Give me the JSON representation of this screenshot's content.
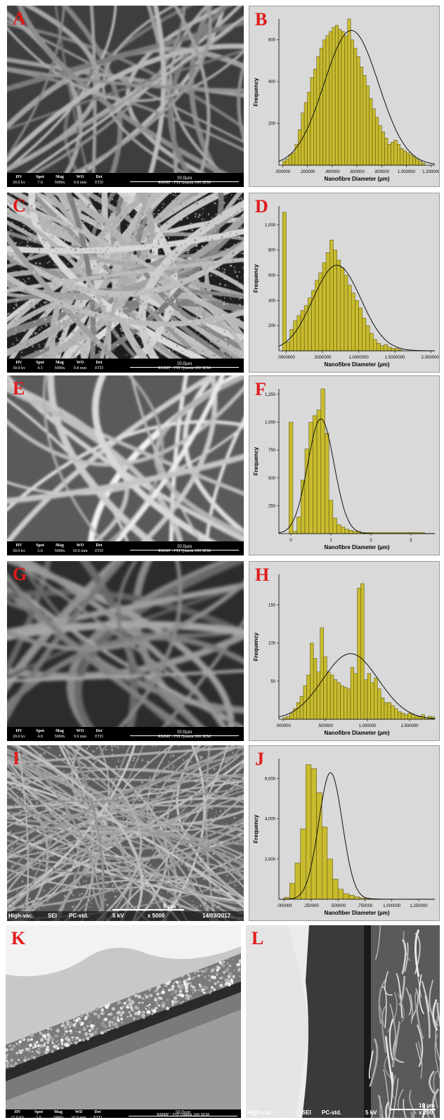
{
  "panels": {
    "A": "A",
    "B": "B",
    "C": "C",
    "D": "D",
    "E": "E",
    "F": "F",
    "G": "G",
    "H": "H",
    "I": "I",
    "J": "J",
    "K": "K",
    "L": "L"
  },
  "sem_bars": {
    "A": {
      "hv": "30.0 kv",
      "spot": "7.0",
      "mag": "5000x",
      "wd": "9.8 mm",
      "det": "ETD",
      "scale": "10.0µm",
      "inst": "RMMF : FEI Quanta 200 SEM"
    },
    "C": {
      "hv": "30.0 kv",
      "spot": "4.5",
      "mag": "5000x",
      "wd": "9.8 mm",
      "det": "ETD",
      "scale": "10.0µm",
      "inst": "RMMF : FEI Quanta 200 SEM"
    },
    "E": {
      "hv": "30.0 kv",
      "spot": "5.0",
      "mag": "5000x",
      "wd": "10.0 mm",
      "det": "ETD",
      "scale": "10.0µm",
      "inst": "RMMF : FEI Quanta 200 SEM"
    },
    "G": {
      "hv": "20.0 kv",
      "spot": "4.0",
      "mag": "5000x",
      "wd": "9.9 mm",
      "det": "ETD",
      "scale": "10.0µm",
      "inst": "RMMF : FEI Quanta 200 SEM"
    },
    "K": {
      "hv": "15.0 kV",
      "spot": "5.0",
      "mag": "1000x",
      "wd": "10.9 mm",
      "det": "ETD",
      "scale": "50.0µm",
      "inst": "RMMF : FEI Quanta 200 SEM"
    }
  },
  "sem_headers": {
    "hv": "HV",
    "spot": "Spot",
    "mag": "Mag",
    "wd": "WO",
    "det": "Det"
  },
  "sem_headers_k": {
    "hv": "HV",
    "spot": "Spot",
    "mag": "Mag",
    "wd": "WD",
    "det": "Det"
  },
  "jeol_I": {
    "vac": "High-vac.",
    "sig": "SEI",
    "mode": "PC-std.",
    "kv": "5 kV",
    "mag": "x 5000",
    "scale": "5 µm",
    "date": "14/03/2017"
  },
  "jeol_L": {
    "vac": "High-vac.",
    "sig": "SEI",
    "mode": "PC-std.",
    "kv": "5 kV",
    "mag": "x 200",
    "scale": "10 µm"
  },
  "hist_colors": {
    "bar": "#c8bb2e",
    "bar_edge": "#4d4a10",
    "curve": "#111111",
    "bg": "#d9d9d9"
  },
  "chart_data": [
    {
      "id": "B",
      "type": "bar",
      "ylabel": "Frequency",
      "xlabel": "Nanofibre Diameter (µm)",
      "xlim": [
        -0.03,
        1.23
      ],
      "ylim": [
        0,
        700
      ],
      "xticks": [
        0,
        0.2,
        0.4,
        0.6,
        0.8,
        1.0,
        1.2
      ],
      "xtick_labels": [
        ".000000",
        ".200000",
        ".400000",
        ".600000",
        ".800000",
        "1.000000",
        "1.200000"
      ],
      "yticks": [
        200,
        400,
        600
      ],
      "ytick_labels": [
        "200",
        "400",
        "600"
      ],
      "bin_start": 0.0,
      "bin_width": 0.025,
      "values": [
        20,
        30,
        50,
        60,
        100,
        170,
        250,
        300,
        350,
        420,
        460,
        520,
        560,
        600,
        620,
        640,
        660,
        670,
        650,
        640,
        620,
        700,
        600,
        560,
        520,
        470,
        430,
        380,
        320,
        270,
        230,
        190,
        160,
        130,
        100,
        110,
        120,
        100,
        80,
        70,
        60,
        50,
        40,
        30,
        20,
        10
      ],
      "curve": {
        "mean": 0.555,
        "sd": 0.22,
        "peak": 645
      }
    },
    {
      "id": "D",
      "type": "bar",
      "ylabel": "Frequency",
      "xlabel": "Nanofibre Diameter (µm)",
      "xlim": [
        -0.1,
        2.05
      ],
      "ylim": [
        0,
        1150
      ],
      "xticks": [
        0,
        0.5,
        1.0,
        1.5,
        2.0
      ],
      "xtick_labels": [
        ".0000000",
        ".5000000",
        "1.0000000",
        "1.5000000",
        "2.0000000"
      ],
      "yticks": [
        200,
        400,
        600,
        800,
        1000
      ],
      "ytick_labels": [
        "200",
        "400",
        "600",
        "800",
        "1,000"
      ],
      "bin_start": -0.05,
      "bin_width": 0.05,
      "values": [
        1100,
        70,
        170,
        240,
        280,
        320,
        360,
        420,
        480,
        560,
        620,
        700,
        780,
        880,
        800,
        720,
        660,
        600,
        520,
        460,
        400,
        340,
        260,
        200,
        140,
        90,
        60,
        40,
        50,
        30,
        20,
        20,
        10
      ],
      "curve": {
        "mean": 0.7,
        "sd": 0.33,
        "peak": 680
      }
    },
    {
      "id": "F",
      "type": "bar",
      "ylabel": "Frequency",
      "xlabel": "Nanofibre Diameter (µm)",
      "xlim": [
        -0.3,
        3.6
      ],
      "ylim": [
        0,
        1300
      ],
      "xticks": [
        0,
        1,
        2,
        3
      ],
      "xtick_labels": [
        "0",
        "1",
        "2",
        "3"
      ],
      "yticks": [
        250,
        500,
        750,
        1000,
        1250
      ],
      "ytick_labels": [
        "250",
        "500",
        "750",
        "1,000",
        "1,250"
      ],
      "bin_start": -0.05,
      "bin_width": 0.1,
      "values": [
        1000,
        20,
        150,
        480,
        760,
        1000,
        1060,
        1110,
        1300,
        900,
        300,
        140,
        80,
        60,
        40,
        30,
        20,
        20,
        10,
        10,
        10,
        10,
        10,
        10,
        10,
        10,
        10,
        10,
        10,
        10,
        10,
        10,
        10,
        10
      ],
      "curve": {
        "mean": 0.75,
        "sd": 0.33,
        "peak": 1030
      }
    },
    {
      "id": "H",
      "type": "bar",
      "ylabel": "Frequency",
      "xlabel": "Nanofibre Diameter (µm)",
      "xlim": [
        -0.05,
        1.8
      ],
      "ylim": [
        0,
        190
      ],
      "xticks": [
        0,
        0.5,
        1.0,
        1.5
      ],
      "xtick_labels": [
        ".000000",
        ".500000",
        "1.000000",
        "1.500000"
      ],
      "yticks": [
        50,
        100,
        150
      ],
      "ytick_labels": [
        "50",
        "100",
        "150"
      ],
      "bin_start": 0.0,
      "bin_width": 0.04,
      "values": [
        2,
        4,
        8,
        14,
        22,
        30,
        44,
        58,
        100,
        80,
        62,
        120,
        82,
        62,
        58,
        52,
        48,
        44,
        42,
        40,
        68,
        60,
        172,
        178,
        52,
        60,
        48,
        54,
        40,
        28,
        22,
        22,
        18,
        14,
        10,
        8,
        6,
        8,
        6,
        4,
        3,
        6,
        2,
        4,
        3
      ],
      "curve": {
        "mean": 0.8,
        "sd": 0.33,
        "peak": 86
      }
    },
    {
      "id": "J",
      "type": "bar",
      "ylabel": "Frequency",
      "xlabel": "Nanofiber Diameter (µm)",
      "xlim": [
        -0.05,
        1.4
      ],
      "ylim": [
        0,
        7000
      ],
      "xticks": [
        0,
        0.25,
        0.5,
        0.75,
        1.0,
        1.25
      ],
      "xtick_labels": [
        ".000000",
        ".250000",
        ".500000",
        ".750000",
        "1.000000",
        "1.250000"
      ],
      "yticks": [
        2000,
        4000,
        6000
      ],
      "ytick_labels": [
        "2,000",
        "4,000",
        "6,000"
      ],
      "bin_start": 0.0,
      "bin_width": 0.05,
      "values": [
        100,
        800,
        1800,
        3500,
        6700,
        6500,
        5300,
        3600,
        2000,
        1000,
        500,
        280,
        200,
        120,
        70,
        50,
        30,
        20,
        10,
        10
      ],
      "curve": {
        "mean": 0.43,
        "sd": 0.11,
        "peak": 6300
      }
    }
  ]
}
